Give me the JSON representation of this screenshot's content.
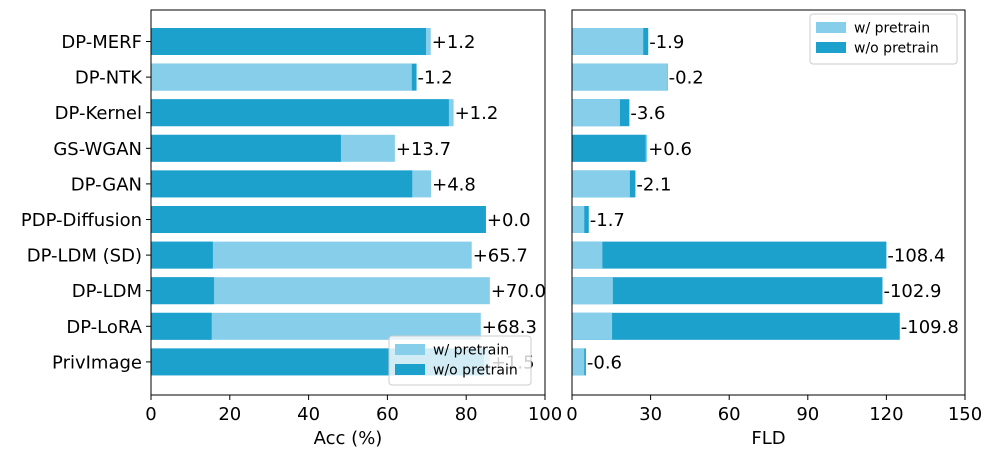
{
  "chart_data": [
    {
      "type": "bar",
      "orientation": "horizontal",
      "categories": [
        "DP-MERF",
        "DP-NTK",
        "DP-Kernel",
        "GS-WGAN",
        "DP-GAN",
        "PDP-Diffusion",
        "DP-LDM (SD)",
        "DP-LDM",
        "DP-LoRA",
        "PrivImage"
      ],
      "series": [
        {
          "name": "w/ pretrain",
          "color": "#87ceeb",
          "values": [
            71.0,
            66.2,
            76.8,
            61.9,
            71.1,
            85.0,
            81.4,
            86.0,
            83.7,
            86.0
          ]
        },
        {
          "name": "w/o pretrain",
          "color": "#1ca0cc",
          "values": [
            69.8,
            67.4,
            75.6,
            48.2,
            66.3,
            85.0,
            15.7,
            16.0,
            15.4,
            84.5
          ]
        }
      ],
      "bar_labels": [
        "+1.2",
        "-1.2",
        "+1.2",
        "+13.7",
        "+4.8",
        "+0.0",
        "+65.7",
        "+70.0",
        "+68.3",
        "+1.5"
      ],
      "xlabel": "Acc (%)",
      "xlim": [
        0,
        100
      ],
      "xticks": [
        0,
        20,
        40,
        60,
        80,
        100
      ],
      "legend_position": "lower-right"
    },
    {
      "type": "bar",
      "orientation": "horizontal",
      "categories": [
        "DP-MERF",
        "DP-NTK",
        "DP-Kernel",
        "GS-WGAN",
        "DP-GAN",
        "PDP-Diffusion",
        "DP-LDM (SD)",
        "DP-LDM",
        "DP-LoRA",
        "PrivImage"
      ],
      "series": [
        {
          "name": "w/ pretrain",
          "color": "#87ceeb",
          "values": [
            27.2,
            36.3,
            18.3,
            28.7,
            22.1,
            4.7,
            11.6,
            15.6,
            15.3,
            4.7
          ]
        },
        {
          "name": "w/o pretrain",
          "color": "#1ca0cc",
          "values": [
            29.1,
            36.5,
            21.9,
            28.1,
            24.2,
            6.4,
            120.0,
            118.5,
            125.1,
            5.3
          ]
        }
      ],
      "bar_labels": [
        "-1.9",
        "-0.2",
        "-3.6",
        "+0.6",
        "-2.1",
        "-1.7",
        "-108.4",
        "-102.9",
        "-109.8",
        "-0.6"
      ],
      "xlabel": "FLD",
      "xlim": [
        0,
        150
      ],
      "xticks": [
        0,
        30,
        60,
        90,
        120,
        150
      ],
      "legend_position": "upper-right"
    }
  ]
}
